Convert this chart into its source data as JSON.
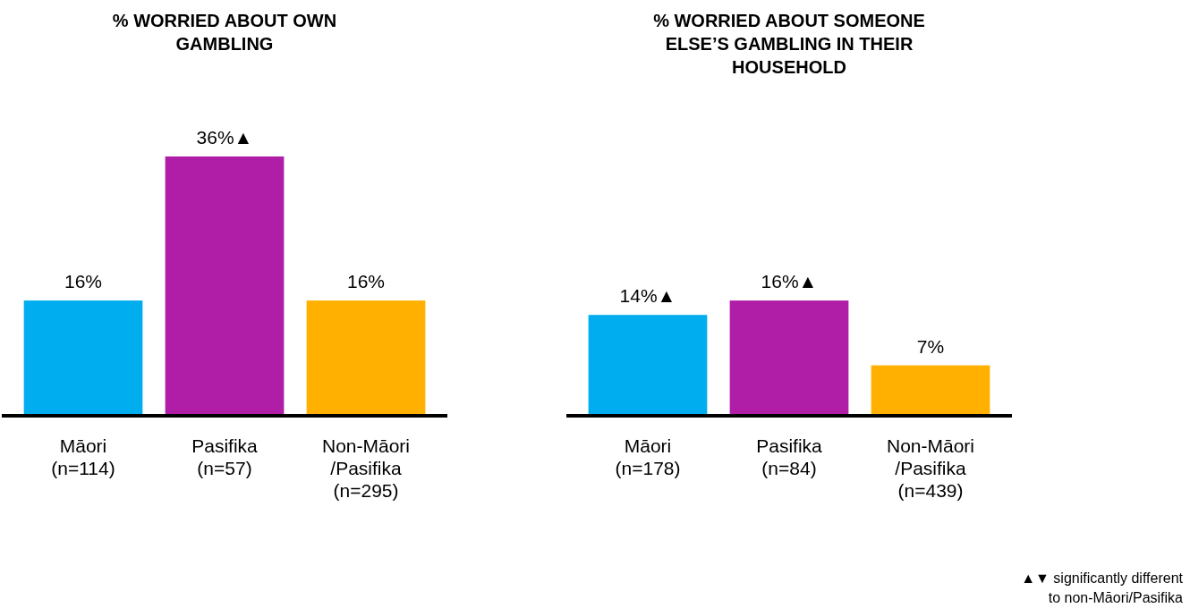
{
  "chart_data": [
    {
      "type": "bar",
      "title": "% WORRIED ABOUT OWN GAMBLING",
      "categories": [
        "Māori\n(n=114)",
        "Pasifika\n(n=57)",
        "Non-Māori\n/Pasifika\n(n=295)"
      ],
      "values": [
        16,
        36,
        16
      ],
      "colors": [
        "#00aeef",
        "#b01ea8",
        "#ffb000"
      ],
      "value_labels": [
        "16%",
        "36%▲",
        "16%"
      ]
    },
    {
      "type": "bar",
      "title": "% WORRIED ABOUT SOMEONE ELSE’S GAMBLING IN THEIR HOUSEHOLD",
      "categories": [
        "Māori\n(n=178)",
        "Pasifika\n(n=84)",
        "Non-Māori\n/Pasifika\n(n=439)"
      ],
      "values": [
        14,
        16,
        7
      ],
      "colors": [
        "#00aeef",
        "#b01ea8",
        "#ffb000"
      ],
      "value_labels": [
        "14%▲",
        "16%▲",
        "7%"
      ],
      "annotations": [
        "▲▼ significantly different\nto non-Māori/Pasifika"
      ]
    }
  ]
}
